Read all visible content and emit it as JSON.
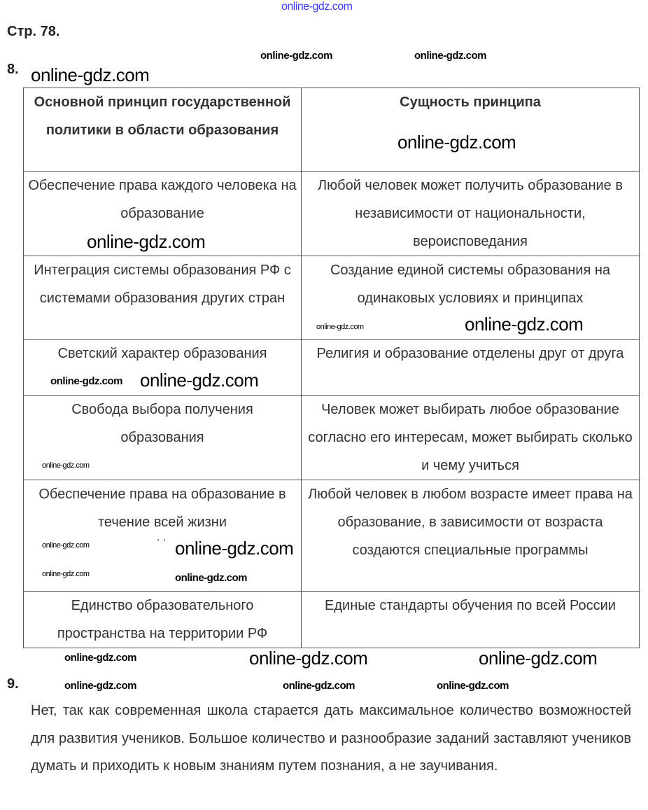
{
  "page_label": "Стр. 78.",
  "task8": {
    "number": "8.",
    "headers": [
      "Основной принцип государственной политики в области образования",
      "Сущность принципа"
    ],
    "rows": [
      [
        "Обеспечение права каждого человека на образование",
        "Любой человек может получить образование в независимости от национальности, вероисповедания"
      ],
      [
        "Интеграция системы образования РФ с системами образования других стран",
        "Создание единой системы образования на одинаковых условиях и принципах"
      ],
      [
        "Светский характер образования",
        "Религия и образование отделены друг от друга"
      ],
      [
        "Свобода выбора получения образования",
        "Человек может выбирать любое образование согласно его интересам, может выбирать сколько и чему учиться"
      ],
      [
        "Обеспечение права на образование в течение всей жизни",
        "Любой человек в любом возрасте имеет права на образование, в зависимости от возраста создаются специальные программы"
      ],
      [
        "Единство образовательного пространства на территории РФ",
        "Единые стандарты обучения по всей России"
      ]
    ],
    "stray_marks": ". ."
  },
  "task9": {
    "number": "9.",
    "text": "Нет, так как современная школа старается дать максимальное количество возможностей для развития учеников. Большое количество и разнообразие заданий заставляют учеников думать и приходить к новым знаниям путем познания, а не заучивания."
  },
  "watermark_text": "online-gdz.com"
}
